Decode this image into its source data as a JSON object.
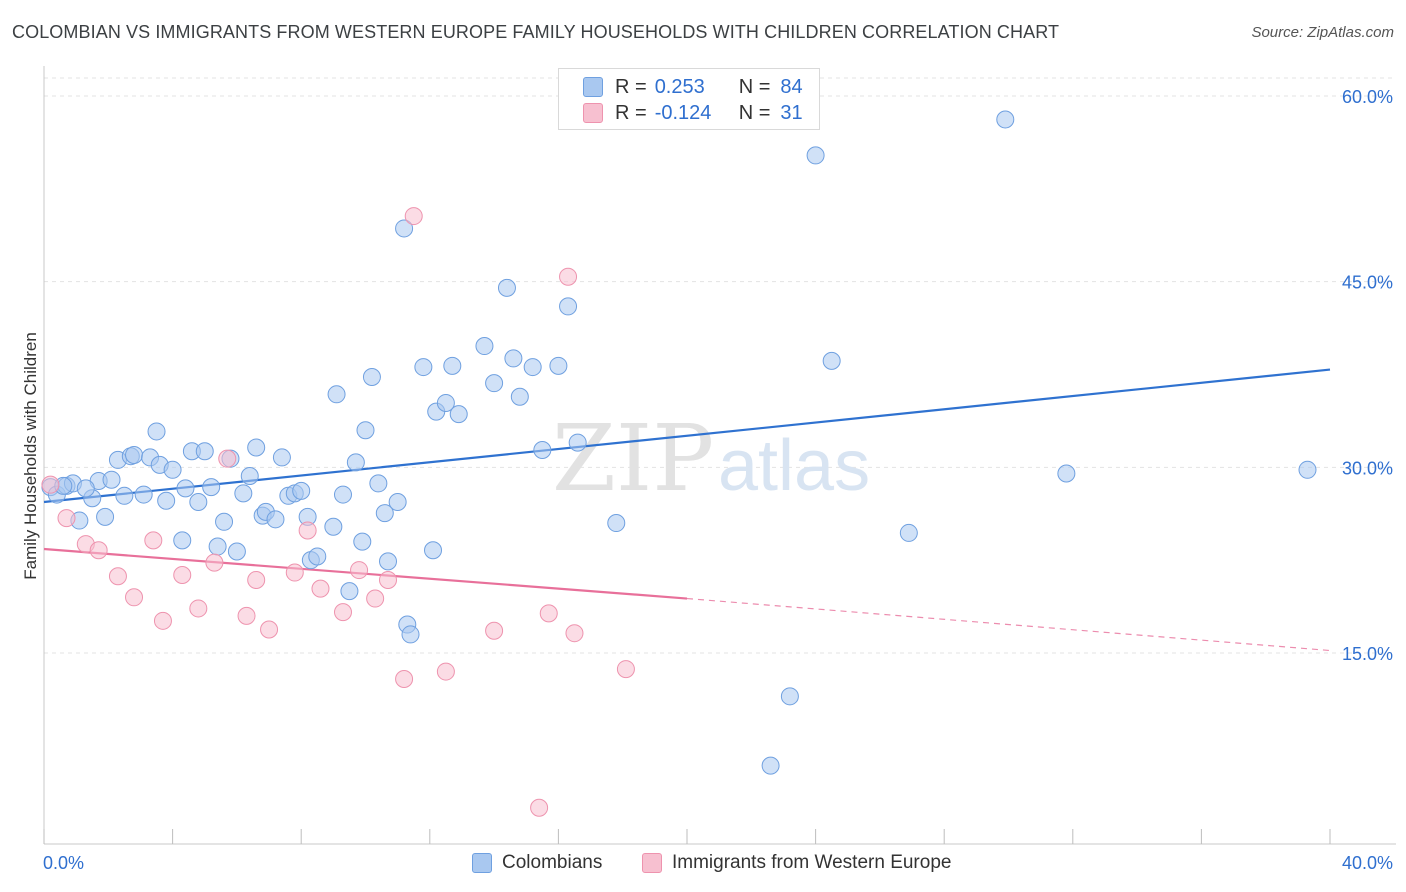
{
  "title": "COLOMBIAN VS IMMIGRANTS FROM WESTERN EUROPE FAMILY HOUSEHOLDS WITH CHILDREN CORRELATION CHART",
  "source": "Source: ZipAtlas.com",
  "watermark": {
    "zip": "ZIP",
    "atlas": "atlas"
  },
  "legend": {
    "r_label": "R =",
    "n_label": "N =",
    "rows": [
      {
        "r": "0.253",
        "n": "84",
        "color": "#a9c8f0",
        "border": "#6fa0e0"
      },
      {
        "r": "-0.124",
        "n": "31",
        "color": "#f7c0d0",
        "border": "#ee93ae"
      }
    ]
  },
  "chart_data": {
    "type": "scatter",
    "title": "COLOMBIAN VS IMMIGRANTS FROM WESTERN EUROPE FAMILY HOUSEHOLDS WITH CHILDREN CORRELATION CHART",
    "xlabel": "",
    "ylabel": "Family Households with Children",
    "xlim": [
      0,
      40
    ],
    "ylim": [
      0,
      60
    ],
    "x_tick_labels": [
      "0.0%",
      "40.0%"
    ],
    "y_ticks": [
      15,
      30,
      45,
      60
    ],
    "y_tick_labels": [
      "15.0%",
      "30.0%",
      "45.0%",
      "60.0%"
    ],
    "grid": true,
    "legend_position": "bottom",
    "series": [
      {
        "name": "Colombians",
        "color": "#a9c8f0",
        "edge": "#6fa0e0",
        "line_color": "#2f72d0",
        "trend": {
          "x": [
            0,
            40
          ],
          "y": [
            27.2,
            37.9
          ]
        },
        "points": [
          [
            0.2,
            28.4
          ],
          [
            0.4,
            27.8
          ],
          [
            0.7,
            28.5
          ],
          [
            0.9,
            28.7
          ],
          [
            1.1,
            25.7
          ],
          [
            1.5,
            27.5
          ],
          [
            1.7,
            28.9
          ],
          [
            1.9,
            26.0
          ],
          [
            2.1,
            29.0
          ],
          [
            2.3,
            30.6
          ],
          [
            2.5,
            27.7
          ],
          [
            2.7,
            30.9
          ],
          [
            2.8,
            31.0
          ],
          [
            3.1,
            27.8
          ],
          [
            3.3,
            30.8
          ],
          [
            3.5,
            32.9
          ],
          [
            3.6,
            30.2
          ],
          [
            3.8,
            27.3
          ],
          [
            4.0,
            29.8
          ],
          [
            4.3,
            24.1
          ],
          [
            4.4,
            28.3
          ],
          [
            4.6,
            31.3
          ],
          [
            4.8,
            27.2
          ],
          [
            5.0,
            31.3
          ],
          [
            5.2,
            28.4
          ],
          [
            5.4,
            23.6
          ],
          [
            5.6,
            25.6
          ],
          [
            5.8,
            30.7
          ],
          [
            6.0,
            23.2
          ],
          [
            6.2,
            27.9
          ],
          [
            6.4,
            29.3
          ],
          [
            6.6,
            31.6
          ],
          [
            6.8,
            26.1
          ],
          [
            6.9,
            26.4
          ],
          [
            7.2,
            25.8
          ],
          [
            7.4,
            30.8
          ],
          [
            7.6,
            27.7
          ],
          [
            7.8,
            27.9
          ],
          [
            8.0,
            28.1
          ],
          [
            8.2,
            26.0
          ],
          [
            8.3,
            22.5
          ],
          [
            8.5,
            22.8
          ],
          [
            9.0,
            25.2
          ],
          [
            9.1,
            35.9
          ],
          [
            9.3,
            27.8
          ],
          [
            9.5,
            20.0
          ],
          [
            9.7,
            30.4
          ],
          [
            9.9,
            24.0
          ],
          [
            10.0,
            33.0
          ],
          [
            10.2,
            37.3
          ],
          [
            10.4,
            28.7
          ],
          [
            10.6,
            26.3
          ],
          [
            10.7,
            22.4
          ],
          [
            11.0,
            27.2
          ],
          [
            11.3,
            17.3
          ],
          [
            11.4,
            16.5
          ],
          [
            11.2,
            49.3
          ],
          [
            11.8,
            38.1
          ],
          [
            12.1,
            23.3
          ],
          [
            12.2,
            34.5
          ],
          [
            12.5,
            35.2
          ],
          [
            12.7,
            38.2
          ],
          [
            12.9,
            34.3
          ],
          [
            13.7,
            39.8
          ],
          [
            14.0,
            36.8
          ],
          [
            14.4,
            44.5
          ],
          [
            14.6,
            38.8
          ],
          [
            14.8,
            35.7
          ],
          [
            15.2,
            38.1
          ],
          [
            15.5,
            31.4
          ],
          [
            16.0,
            38.2
          ],
          [
            16.3,
            43.0
          ],
          [
            16.6,
            32.0
          ],
          [
            17.8,
            25.5
          ],
          [
            23.2,
            11.5
          ],
          [
            22.6,
            5.9
          ],
          [
            24.0,
            55.2
          ],
          [
            24.5,
            38.6
          ],
          [
            26.9,
            24.7
          ],
          [
            29.9,
            58.1
          ],
          [
            31.8,
            29.5
          ],
          [
            39.3,
            29.8
          ],
          [
            0.6,
            28.5
          ],
          [
            1.3,
            28.3
          ]
        ]
      },
      {
        "name": "Immigrants from Western Europe",
        "color": "#f7c0d0",
        "edge": "#ee93ae",
        "line_color": "#e8709a",
        "trend": {
          "x": [
            0,
            20
          ],
          "y": [
            23.4,
            19.4
          ]
        },
        "trend_dashed": {
          "x": [
            20,
            40
          ],
          "y": [
            19.4,
            15.2
          ]
        },
        "points": [
          [
            0.2,
            28.6
          ],
          [
            0.7,
            25.9
          ],
          [
            1.3,
            23.8
          ],
          [
            1.7,
            23.3
          ],
          [
            2.3,
            21.2
          ],
          [
            2.8,
            19.5
          ],
          [
            3.4,
            24.1
          ],
          [
            3.7,
            17.6
          ],
          [
            4.3,
            21.3
          ],
          [
            4.8,
            18.6
          ],
          [
            5.3,
            22.3
          ],
          [
            5.7,
            30.7
          ],
          [
            6.3,
            18.0
          ],
          [
            6.6,
            20.9
          ],
          [
            7.0,
            16.9
          ],
          [
            7.8,
            21.5
          ],
          [
            8.2,
            24.9
          ],
          [
            8.6,
            20.2
          ],
          [
            9.3,
            18.3
          ],
          [
            9.8,
            21.7
          ],
          [
            10.3,
            19.4
          ],
          [
            10.7,
            20.9
          ],
          [
            11.5,
            50.3
          ],
          [
            11.2,
            12.9
          ],
          [
            12.5,
            13.5
          ],
          [
            14.0,
            16.8
          ],
          [
            15.4,
            2.5
          ],
          [
            15.7,
            18.2
          ],
          [
            16.3,
            45.4
          ],
          [
            16.5,
            16.6
          ],
          [
            18.1,
            13.7
          ]
        ]
      }
    ]
  }
}
